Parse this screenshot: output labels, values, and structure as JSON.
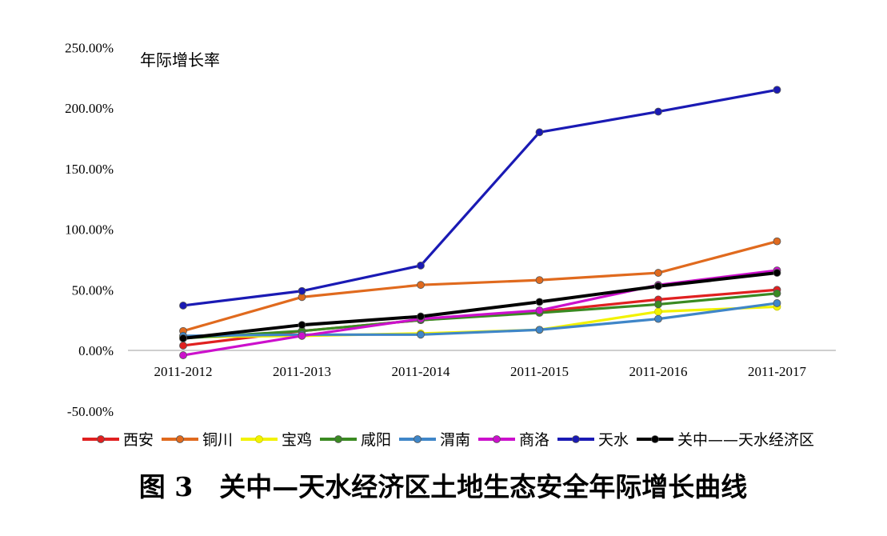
{
  "chart_data": {
    "type": "line",
    "ylabel": "年际增长率",
    "categories": [
      "2011-2012",
      "2011-2013",
      "2011-2014",
      "2011-2015",
      "2011-2016",
      "2011-2017"
    ],
    "y_ticks": [
      "250.00%",
      "200.00%",
      "150.00%",
      "100.00%",
      "50.00%",
      "0.00%",
      "-50.00%"
    ],
    "ylim": [
      -50,
      250
    ],
    "y_unit": "%",
    "grid": false,
    "legend_position": "bottom",
    "series": [
      {
        "name": "西安",
        "color": "#e02020",
        "values": [
          4,
          16,
          25,
          32,
          42,
          50
        ]
      },
      {
        "name": "铜川",
        "color": "#e06a1e",
        "values": [
          16,
          44,
          54,
          58,
          64,
          90
        ]
      },
      {
        "name": "宝鸡",
        "color": "#f2f200",
        "values": [
          11,
          12,
          14,
          17,
          32,
          36
        ]
      },
      {
        "name": "咸阳",
        "color": "#3a8a22",
        "values": [
          10,
          16,
          25,
          31,
          38,
          47
        ]
      },
      {
        "name": "渭南",
        "color": "#3f86c8",
        "values": [
          12,
          13,
          13,
          17,
          26,
          39
        ]
      },
      {
        "name": "商洛",
        "color": "#cc10cc",
        "values": [
          -4,
          12,
          26,
          33,
          54,
          66
        ]
      },
      {
        "name": "天水",
        "color": "#1a1ab4",
        "values": [
          37,
          49,
          70,
          180,
          197,
          215
        ]
      },
      {
        "name": "关中——天水经济区",
        "color": "#000000",
        "values": [
          10,
          21,
          28,
          40,
          53,
          64
        ]
      }
    ]
  },
  "caption": "图 3　关中—天水经济区土地生态安全年际增长曲线"
}
